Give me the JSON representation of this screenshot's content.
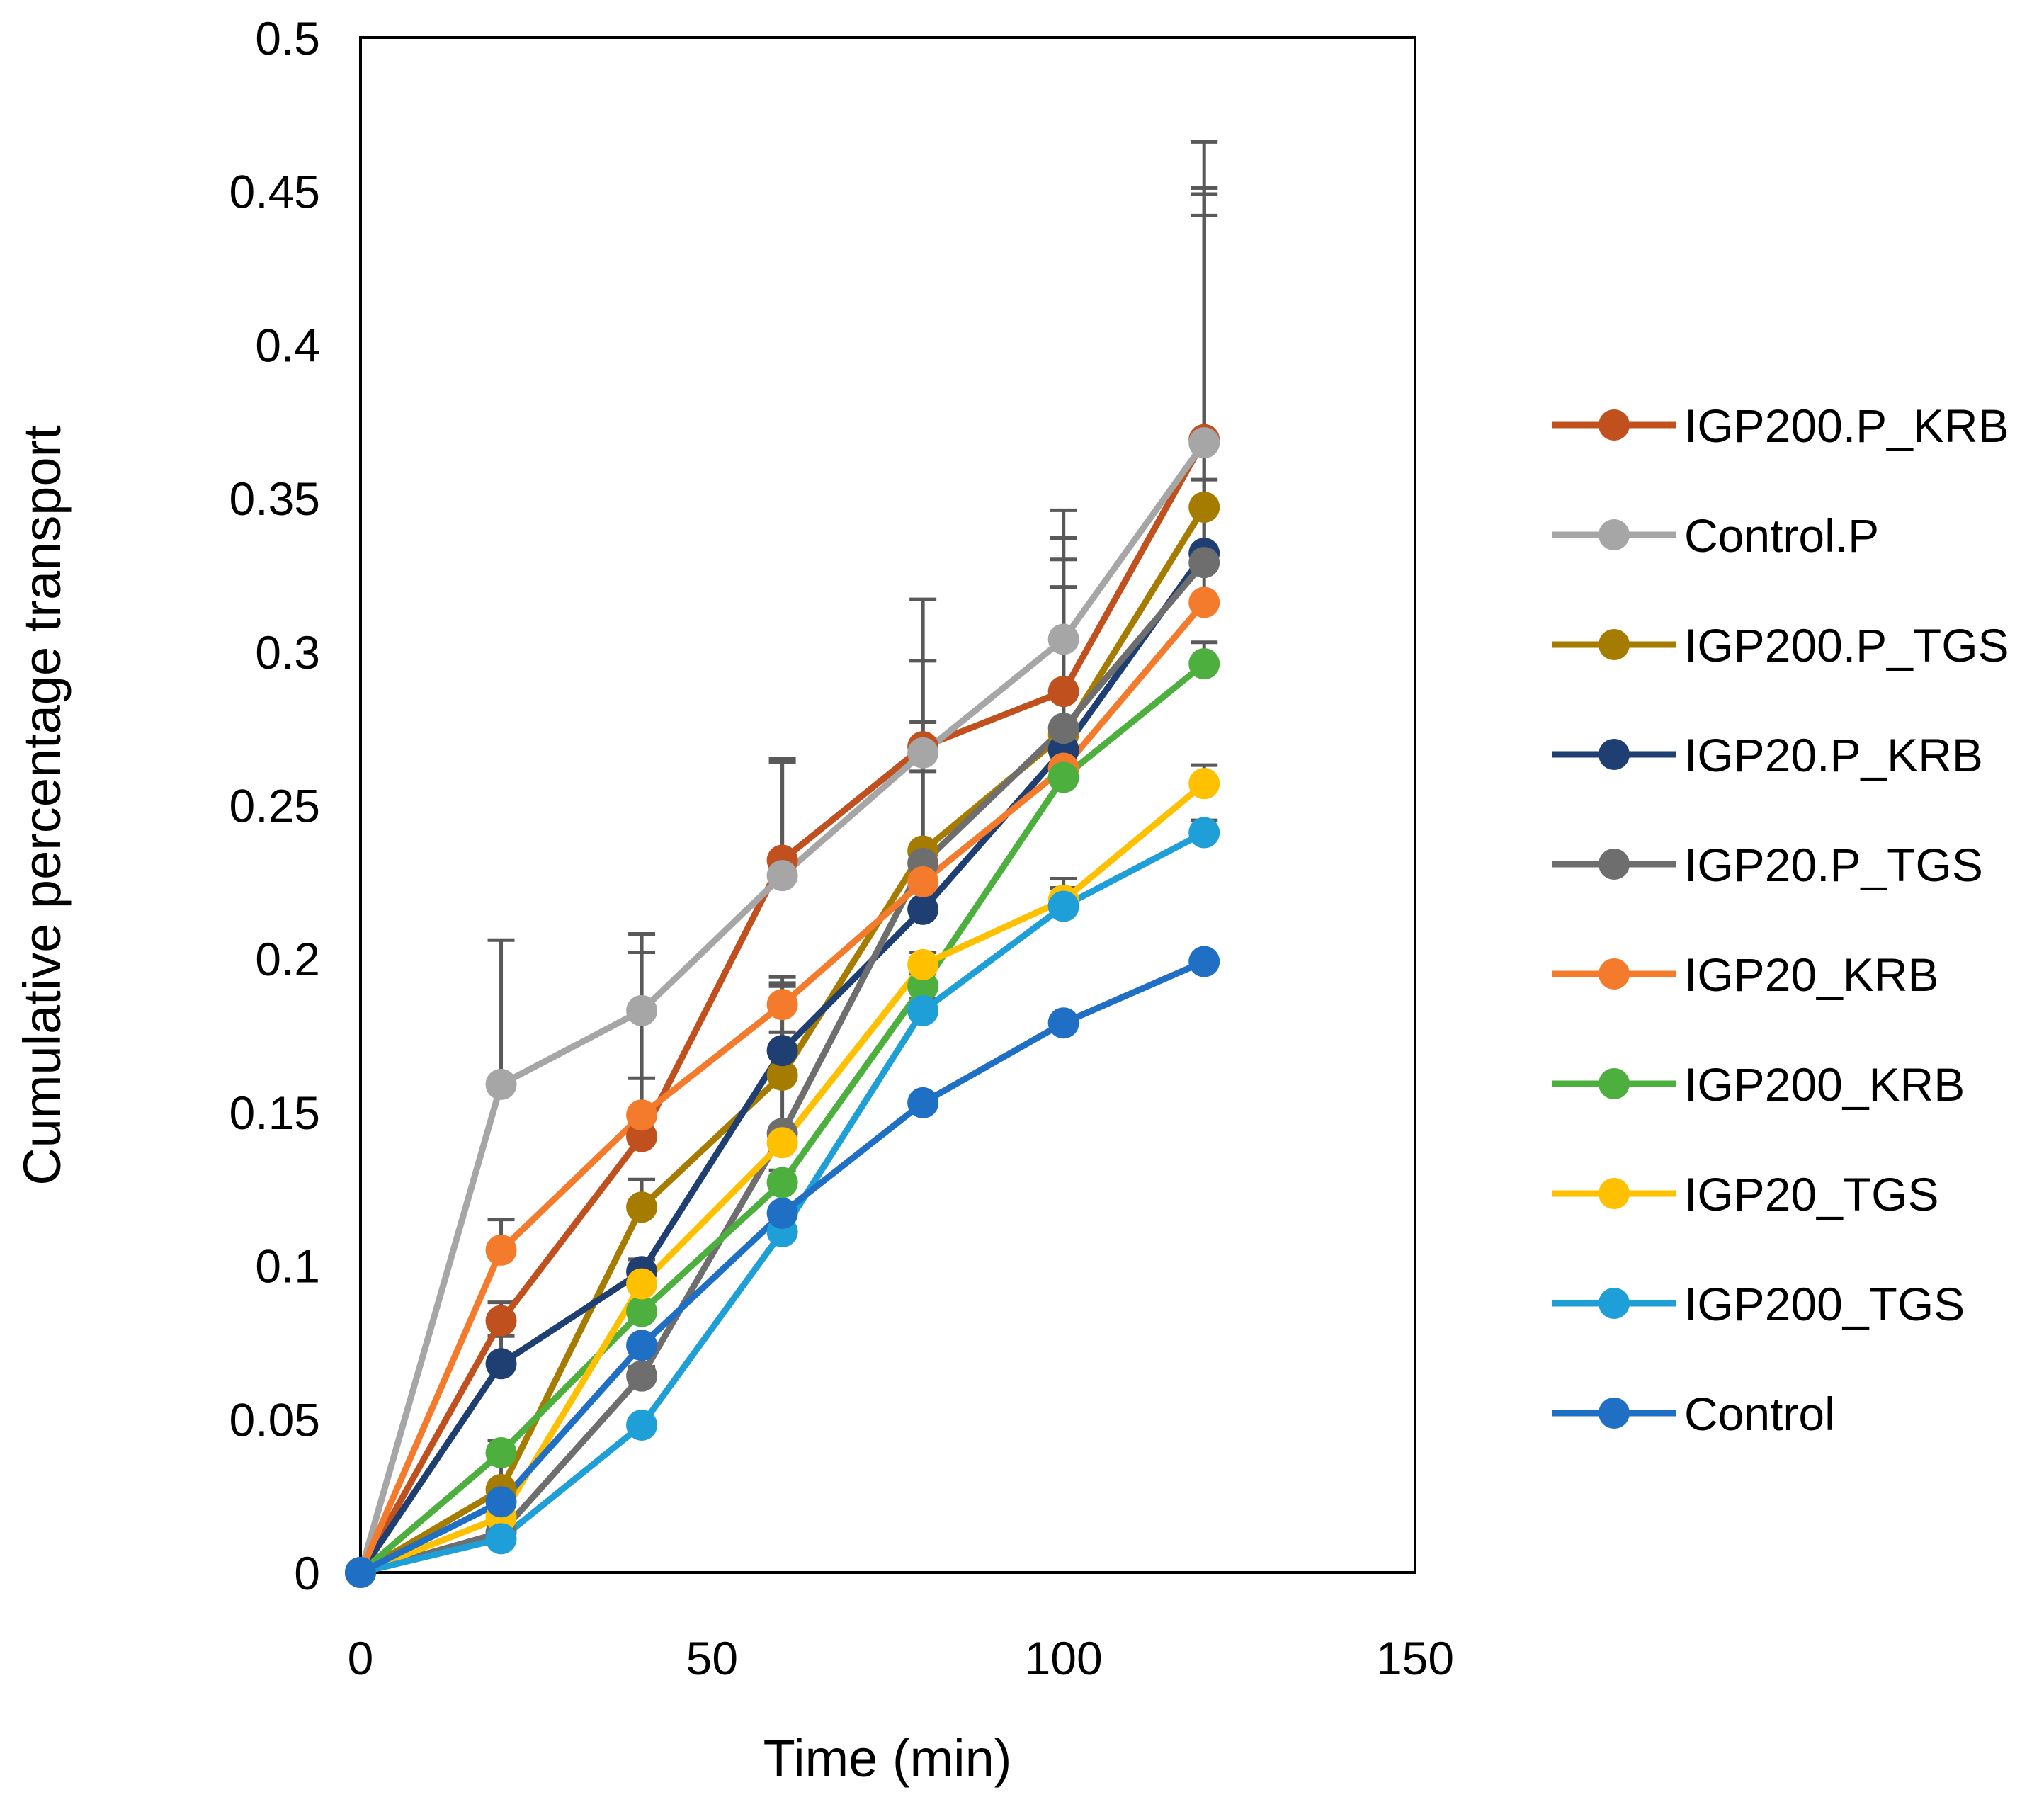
{
  "chart_data": {
    "type": "line",
    "title": "",
    "xlabel": "Time (min)",
    "ylabel": "Cumulative percentage transport",
    "xlim": [
      0,
      150
    ],
    "ylim": [
      0,
      0.5
    ],
    "xticks": [
      0,
      50,
      100,
      150
    ],
    "xtick_labels": [
      "0",
      "50",
      "100",
      "150"
    ],
    "yticks": [
      0,
      0.05,
      0.1,
      0.15,
      0.2,
      0.25,
      0.3,
      0.35,
      0.4,
      0.45,
      0.5
    ],
    "ytick_labels": [
      "0",
      "0.05",
      "0.1",
      "0.15",
      "0.2",
      "0.25",
      "0.3",
      "0.35",
      "0.4",
      "0.45",
      "0.5"
    ],
    "grid": false,
    "legend_position": "right",
    "x": [
      0,
      20,
      40,
      60,
      80,
      100,
      120
    ],
    "series": [
      {
        "name": "IGP200.P_KRB",
        "color": "#C0501E",
        "values": [
          0,
          0.082,
          0.142,
          0.232,
          0.269,
          0.287,
          0.369
        ],
        "errors": [
          0,
          0.006,
          0.06,
          0.032,
          0.048,
          0.05,
          0.097
        ]
      },
      {
        "name": "Control.P",
        "color": "#A6A6A6",
        "values": [
          0,
          0.159,
          0.183,
          0.227,
          0.267,
          0.304,
          0.368
        ],
        "errors": [
          0,
          0.047,
          0.025,
          0.038,
          0.03,
          0.042,
          0.083
        ]
      },
      {
        "name": "IGP200.P_TGS",
        "color": "#A67C00",
        "values": [
          0,
          0.027,
          0.119,
          0.162,
          0.235,
          0.273,
          0.347
        ],
        "errors": [
          0,
          0.01,
          0.009,
          0.03,
          0.042,
          0.048,
          0.104
        ]
      },
      {
        "name": "IGP20.P_KRB",
        "color": "#1F3F73",
        "values": [
          0,
          0.068,
          0.098,
          0.17,
          0.216,
          0.268,
          0.332
        ],
        "errors": [
          0,
          0.009,
          0.004,
          0.024,
          0.045,
          0.053,
          0.11
        ]
      },
      {
        "name": "IGP20.P_TGS",
        "color": "#6E6E6E",
        "values": [
          0,
          0.013,
          0.064,
          0.143,
          0.231,
          0.275,
          0.329
        ],
        "errors": [
          0,
          0.004,
          0.003,
          0.033,
          0.066,
          0.055,
          0.12
        ]
      },
      {
        "name": "IGP20_KRB",
        "color": "#F47B2C",
        "values": [
          0,
          0.105,
          0.149,
          0.185,
          0.225,
          0.262,
          0.316
        ],
        "errors": [
          0,
          0.01,
          0.012,
          0.006,
          0.006,
          0.004,
          0.04
        ]
      },
      {
        "name": "IGP200_KRB",
        "color": "#4CAF3E",
        "values": [
          0,
          0.039,
          0.085,
          0.127,
          0.191,
          0.259,
          0.296
        ],
        "errors": [
          0,
          0.004,
          0.002,
          0.004,
          0.004,
          0.004,
          0.007
        ]
      },
      {
        "name": "IGP20_TGS",
        "color": "#FFC000",
        "values": [
          0,
          0.018,
          0.094,
          0.14,
          0.198,
          0.219,
          0.257
        ],
        "errors": [
          0,
          0.002,
          0.004,
          0.004,
          0.004,
          0.004,
          0.006
        ]
      },
      {
        "name": "IGP200_TGS",
        "color": "#1E9FD8",
        "values": [
          0,
          0.011,
          0.048,
          0.111,
          0.183,
          0.217,
          0.241
        ],
        "errors": [
          0,
          0.002,
          0.002,
          0.004,
          0.004,
          0.009,
          0.004
        ]
      },
      {
        "name": "Control",
        "color": "#1F6FC4",
        "values": [
          0,
          0.023,
          0.074,
          0.117,
          0.153,
          0.179,
          0.199
        ],
        "errors": [
          0,
          0.002,
          0.002,
          0.002,
          0.002,
          0.002,
          0.002
        ]
      }
    ]
  }
}
